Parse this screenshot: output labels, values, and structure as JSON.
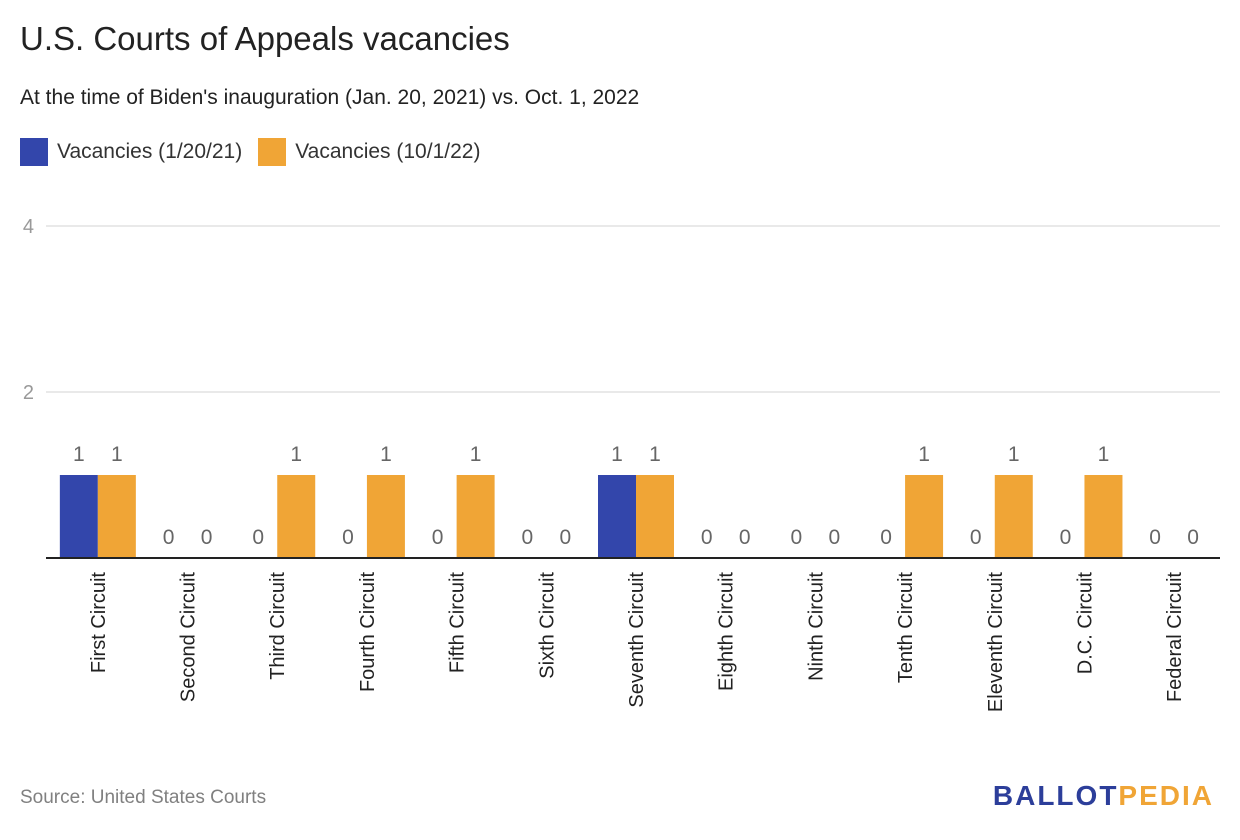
{
  "title": "U.S. Courts of Appeals vacancies",
  "subtitle": "At the time of Biden's inauguration (Jan. 20, 2021) vs. Oct. 1, 2022",
  "source": "Source: United States Courts",
  "brand": {
    "part1": "BALLOT",
    "part2": "PEDIA"
  },
  "colors": {
    "series1": "#3346ab",
    "series2": "#f0a536",
    "grid": "#e2e2e2",
    "axis": "#222222",
    "tick": "#999999",
    "label": "#666666"
  },
  "chart_data": {
    "type": "bar",
    "title": "U.S. Courts of Appeals vacancies",
    "subtitle": "At the time of Biden's inauguration (Jan. 20, 2021) vs. Oct. 1, 2022",
    "xlabel": "",
    "ylabel": "",
    "ylim": [
      0,
      4
    ],
    "yticks": [
      2,
      4
    ],
    "grid": true,
    "legend_position": "top-left",
    "categories": [
      "First Circuit",
      "Second Circuit",
      "Third Circuit",
      "Fourth Circuit",
      "Fifth Circuit",
      "Sixth Circuit",
      "Seventh Circuit",
      "Eighth Circuit",
      "Ninth Circuit",
      "Tenth Circuit",
      "Eleventh Circuit",
      "D.C. Circuit",
      "Federal Circuit"
    ],
    "series": [
      {
        "name": "Vacancies (1/20/21)",
        "color": "#3346ab",
        "values": [
          1,
          0,
          0,
          0,
          0,
          0,
          1,
          0,
          0,
          0,
          0,
          0,
          0
        ]
      },
      {
        "name": "Vacancies (10/1/22)",
        "color": "#f0a536",
        "values": [
          1,
          0,
          1,
          1,
          1,
          0,
          1,
          0,
          0,
          1,
          1,
          1,
          0
        ]
      }
    ]
  }
}
